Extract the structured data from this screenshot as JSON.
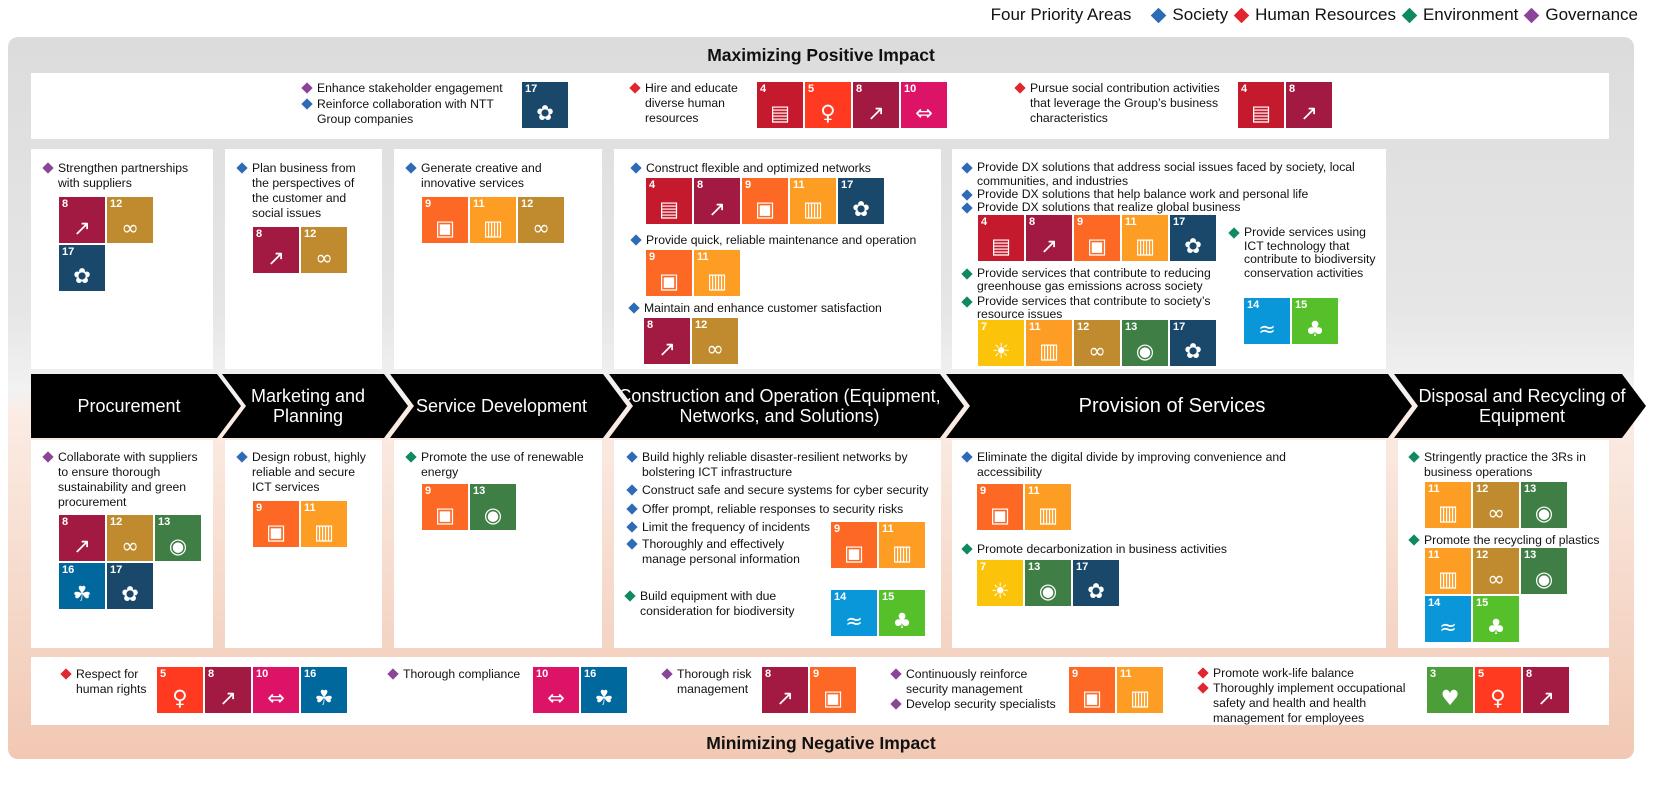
{
  "legend": {
    "title": "Four Priority Areas",
    "items": [
      {
        "label": "Society",
        "color": "#2e6bb6"
      },
      {
        "label": "Human Resources",
        "color": "#e0262e"
      },
      {
        "label": "Environment",
        "color": "#0e8a5d"
      },
      {
        "label": "Governance",
        "color": "#8a449a"
      }
    ]
  },
  "top_title": "Maximizing Positive Impact",
  "bottom_title": "Minimizing Negative Impact",
  "stages": [
    "Procurement",
    "Marketing and Planning",
    "Service Development",
    "Construction and Operation (Equipment, Networks, and Solutions)",
    "Provision of Services",
    "Disposal and Recycling of Equipment"
  ],
  "sdg_colors": {
    "3": "#4c9f38",
    "4": "#c5192d",
    "5": "#ff3a21",
    "7": "#fcc30b",
    "8": "#a21942",
    "9": "#fd6925",
    "10": "#dd1367",
    "11": "#fd9d24",
    "12": "#bf8b2e",
    "13": "#3f7e44",
    "14": "#0a97d9",
    "15": "#56c02b",
    "16": "#00689d",
    "17": "#19486a"
  },
  "sdg_icons": {
    "3": "heartbeat-icon",
    "4": "book-icon",
    "5": "gender-icon",
    "7": "sun-icon",
    "8": "growth-chart-icon",
    "9": "cubes-icon",
    "10": "equality-icon",
    "11": "city-icon",
    "12": "infinity-icon",
    "13": "eye-earth-icon",
    "14": "fish-icon",
    "15": "tree-icon",
    "16": "dove-icon",
    "17": "flower-icon"
  },
  "top_row": [
    {
      "items": [
        {
          "area": "Governance",
          "text": "Enhance stakeholder engagement"
        },
        {
          "area": "Society",
          "text": "Reinforce collaboration with NTT Group companies"
        }
      ],
      "sdgs": [
        17
      ]
    },
    {
      "items": [
        {
          "area": "Human Resources",
          "text": "Hire and educate diverse human resources"
        }
      ],
      "sdgs": [
        4,
        5,
        8,
        10
      ]
    },
    {
      "items": [
        {
          "area": "Human Resources",
          "text": "Pursue social contribution activities that leverage the Group’s business characteristics"
        }
      ],
      "sdgs": [
        4,
        8
      ]
    }
  ],
  "upper": [
    {
      "items": [
        {
          "area": "Governance",
          "text": "Strengthen partnerships with suppliers"
        }
      ],
      "sdgs": [
        8,
        12,
        17
      ]
    },
    {
      "items": [
        {
          "area": "Society",
          "text": "Plan business from the perspectives of the customer and social issues"
        }
      ],
      "sdgs": [
        8,
        12
      ]
    },
    {
      "items": [
        {
          "area": "Society",
          "text": "Generate creative and innovative services"
        }
      ],
      "sdgs": [
        9,
        11,
        12
      ]
    },
    {
      "items": [
        {
          "area": "Society",
          "text": "Construct flexible and optimized networks"
        },
        {
          "area": "Society",
          "text": "Provide quick, reliable maintenance and operation"
        },
        {
          "area": "Society",
          "text": "Maintain and enhance customer satisfaction"
        }
      ],
      "sdgs": [
        [
          4,
          8,
          9,
          11,
          17
        ],
        [
          9,
          11
        ],
        [
          8,
          12
        ]
      ]
    },
    {
      "items": [
        {
          "area": "Society",
          "text": "Provide DX solutions that address social issues faced by society, local communities, and industries"
        },
        {
          "area": "Society",
          "text": "Provide DX solutions that help balance work and personal life"
        },
        {
          "area": "Society",
          "text": "Provide DX solutions that realize global business"
        },
        {
          "area": "Environment",
          "text": "Provide services that contribute to reducing greenhouse gas emissions across society"
        },
        {
          "area": "Environment",
          "text": "Provide services that contribute to society’s resource issues"
        },
        {
          "area": "Environment",
          "text": "Provide services using ICT technology that contribute to biodiversity conservation activities"
        }
      ],
      "sdgs": [
        [
          4,
          8,
          9,
          11,
          17
        ],
        [
          7,
          11,
          12,
          13,
          17
        ],
        [
          14,
          15
        ]
      ]
    }
  ],
  "lower": [
    {
      "items": [
        {
          "area": "Governance",
          "text": "Collaborate with suppliers to ensure thorough sustainability and green procurement"
        }
      ],
      "sdgs": [
        8,
        12,
        13,
        16,
        17
      ]
    },
    {
      "items": [
        {
          "area": "Society",
          "text": "Design robust, highly reliable and secure ICT services"
        }
      ],
      "sdgs": [
        9,
        11
      ]
    },
    {
      "items": [
        {
          "area": "Environment",
          "text": "Promote the use of renewable energy"
        }
      ],
      "sdgs": [
        9,
        13
      ]
    },
    {
      "items": [
        {
          "area": "Society",
          "text": "Build highly reliable disaster-resilient networks by bolstering ICT infrastructure"
        },
        {
          "area": "Society",
          "text": "Construct safe and secure systems for cyber security"
        },
        {
          "area": "Society",
          "text": "Offer prompt, reliable responses to security risks"
        },
        {
          "area": "Society",
          "text": "Limit the frequency of incidents"
        },
        {
          "area": "Society",
          "text": "Thoroughly and effectively manage personal information"
        },
        {
          "area": "Environment",
          "text": "Build equipment with due consideration for biodiversity"
        }
      ],
      "sdgs": [
        [
          9,
          11
        ],
        [
          14,
          15
        ]
      ]
    },
    {
      "items": [
        {
          "area": "Society",
          "text": "Eliminate the digital divide by improving convenience and accessibility"
        },
        {
          "area": "Environment",
          "text": "Promote decarbonization in business activities"
        }
      ],
      "sdgs": [
        [
          9,
          11
        ],
        [
          7,
          13,
          17
        ]
      ]
    },
    {
      "items": [
        {
          "area": "Environment",
          "text": "Stringently practice the 3Rs in business operations"
        },
        {
          "area": "Environment",
          "text": "Promote the recycling of plastics"
        }
      ],
      "sdgs": [
        [
          11,
          12,
          13
        ],
        [
          11,
          12,
          13,
          14,
          15
        ]
      ]
    }
  ],
  "bottom_row": [
    {
      "items": [
        {
          "area": "Human Resources",
          "text": "Respect for human rights"
        }
      ],
      "sdgs": [
        5,
        8,
        10,
        16
      ]
    },
    {
      "items": [
        {
          "area": "Governance",
          "text": "Thorough compliance"
        }
      ],
      "sdgs": [
        10,
        16
      ]
    },
    {
      "items": [
        {
          "area": "Governance",
          "text": "Thorough risk management"
        }
      ],
      "sdgs": [
        8,
        9
      ]
    },
    {
      "items": [
        {
          "area": "Governance",
          "text": "Continuously reinforce security management"
        },
        {
          "area": "Governance",
          "text": "Develop security specialists"
        }
      ],
      "sdgs": [
        9,
        11
      ]
    },
    {
      "items": [
        {
          "area": "Human Resources",
          "text": "Promote work-life balance"
        },
        {
          "area": "Human Resources",
          "text": "Thoroughly implement occupational safety and health and health management for employees"
        }
      ],
      "sdgs": [
        3,
        5,
        8
      ]
    }
  ]
}
